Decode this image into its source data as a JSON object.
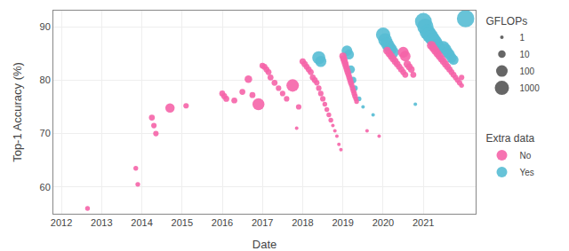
{
  "chart_data": {
    "type": "scatter",
    "xlabel": "Date",
    "ylabel": "Top-1 Accuracy (%)",
    "xlim": [
      2011.8,
      2022.3
    ],
    "ylim": [
      55,
      93
    ],
    "xticks": [
      2012,
      2013,
      2014,
      2015,
      2016,
      2017,
      2018,
      2019,
      2020,
      2021
    ],
    "yticks": [
      60,
      70,
      80,
      90
    ],
    "grid": true,
    "legend_title": "Extra data",
    "size_legend": {
      "title": "GFLOPs",
      "values": [
        1,
        10,
        100,
        1000
      ],
      "color": "#666666"
    },
    "series": [
      {
        "name": "No",
        "color": "#F564A9",
        "x": [
          2012.65,
          2013.85,
          2013.9,
          2014.25,
          2014.3,
          2014.35,
          2014.7,
          2015.1,
          2016.0,
          2016.05,
          2016.1,
          2016.3,
          2016.5,
          2016.65,
          2016.75,
          2016.9,
          2017.0,
          2017.05,
          2017.1,
          2017.15,
          2017.2,
          2017.3,
          2017.4,
          2017.5,
          2017.6,
          2017.75,
          2017.85,
          2017.9,
          2018.0,
          2018.05,
          2018.1,
          2018.15,
          2018.2,
          2018.25,
          2018.3,
          2018.35,
          2018.4,
          2018.45,
          2018.5,
          2018.55,
          2018.6,
          2018.65,
          2018.7,
          2018.75,
          2018.8,
          2018.85,
          2018.9,
          2018.95,
          2019.0,
          2019.02,
          2019.04,
          2019.06,
          2019.08,
          2019.1,
          2019.12,
          2019.14,
          2019.16,
          2019.18,
          2019.2,
          2019.22,
          2019.24,
          2019.26,
          2019.28,
          2019.3,
          2019.32,
          2019.34,
          2019.6,
          2019.9,
          2020.1,
          2020.15,
          2020.2,
          2020.25,
          2020.3,
          2020.35,
          2020.4,
          2020.45,
          2020.5,
          2020.55,
          2020.5,
          2020.55,
          2020.6,
          2020.65,
          2020.7,
          2020.75,
          2021.2,
          2021.25,
          2021.3,
          2021.35,
          2021.4,
          2021.45,
          2021.5,
          2021.55,
          2021.6,
          2021.65,
          2021.7,
          2021.75,
          2021.8,
          2021.85,
          2021.9,
          2021.95,
          2021.95
        ],
        "values": [
          56.0,
          63.5,
          60.5,
          73.0,
          71.5,
          70.0,
          74.8,
          75.2,
          77.5,
          77.0,
          76.5,
          76.2,
          77.8,
          80.2,
          77.2,
          75.5,
          82.7,
          82.5,
          82.0,
          81.5,
          80.5,
          79.5,
          78.5,
          77.5,
          76.5,
          79.0,
          71.0,
          75.0,
          83.5,
          83.0,
          82.5,
          82.0,
          81.5,
          80.5,
          80.0,
          79.5,
          78.5,
          77.5,
          76.5,
          75.5,
          74.5,
          73.5,
          72.5,
          71.5,
          70.5,
          69.5,
          68.0,
          67.0,
          84.5,
          84.0,
          83.5,
          83.0,
          82.5,
          82.0,
          81.5,
          81.0,
          80.5,
          80.0,
          79.5,
          79.0,
          78.5,
          78.0,
          77.5,
          77.0,
          76.5,
          76.0,
          70.5,
          69.5,
          85.5,
          85.0,
          84.5,
          84.0,
          83.5,
          83.0,
          82.5,
          82.0,
          81.5,
          81.0,
          85.2,
          84.5,
          83.0,
          82.5,
          82.0,
          81.0,
          86.5,
          86.0,
          85.5,
          85.0,
          84.5,
          84.0,
          83.5,
          83.0,
          82.5,
          82.0,
          81.5,
          81.0,
          80.5,
          80.0,
          79.5,
          79.0,
          80.5
        ],
        "sizes": [
          2,
          2,
          2,
          4,
          3,
          3,
          28,
          3,
          4,
          4,
          4,
          4,
          4,
          10,
          4,
          130,
          4,
          4,
          4,
          4,
          4,
          4,
          3,
          3,
          3,
          170,
          1,
          3,
          5,
          5,
          4,
          4,
          4,
          4,
          4,
          3,
          3,
          3,
          3,
          2,
          2,
          2,
          2,
          1,
          1,
          1,
          1,
          1,
          8,
          7,
          6,
          6,
          5,
          5,
          5,
          4,
          4,
          4,
          4,
          3,
          3,
          3,
          3,
          3,
          2,
          2,
          1,
          1,
          12,
          10,
          9,
          8,
          7,
          6,
          5,
          5,
          4,
          4,
          70,
          55,
          9,
          7,
          6,
          4,
          22,
          18,
          16,
          14,
          12,
          10,
          8,
          7,
          6,
          5,
          4,
          4,
          3,
          3,
          3,
          2,
          3
        ]
      },
      {
        "name": "Yes",
        "color": "#56BCD4",
        "x": [
          2018.4,
          2018.45,
          2019.1,
          2019.15,
          2019.2,
          2019.25,
          2019.3,
          2019.4,
          2019.5,
          2019.75,
          2020.0,
          2020.05,
          2020.1,
          2020.15,
          2020.2,
          2020.25,
          2020.8,
          2021.0,
          2021.05,
          2021.1,
          2021.15,
          2021.2,
          2021.25,
          2021.3,
          2021.35,
          2021.4,
          2021.5,
          2021.55,
          2021.6,
          2021.65,
          2021.7,
          2021.75,
          2022.05
        ],
        "values": [
          84.2,
          83.5,
          85.5,
          84.8,
          82.0,
          80.0,
          78.5,
          76.5,
          75.0,
          73.5,
          88.5,
          87.5,
          86.8,
          86.2,
          85.8,
          85.2,
          75.5,
          91.0,
          90.0,
          89.0,
          88.5,
          88.0,
          87.5,
          87.0,
          86.5,
          86.0,
          86.2,
          85.8,
          85.2,
          84.8,
          84.2,
          83.8,
          91.5
        ],
        "sizes": [
          250,
          80,
          60,
          40,
          12,
          6,
          3,
          2,
          1,
          1,
          500,
          350,
          200,
          150,
          100,
          80,
          1,
          2000,
          1500,
          1000,
          800,
          600,
          500,
          400,
          200,
          150,
          120,
          100,
          80,
          60,
          50,
          40,
          3000
        ]
      }
    ]
  }
}
